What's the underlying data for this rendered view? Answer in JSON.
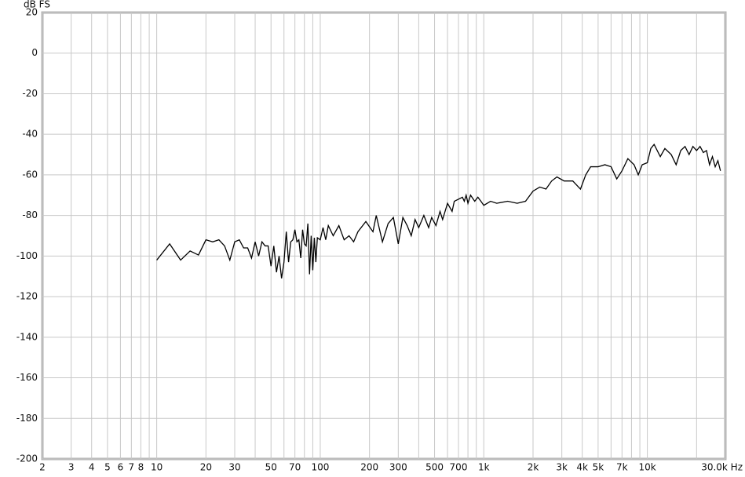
{
  "chart_data": {
    "type": "line",
    "y_label": "dB FS",
    "xscale": "log",
    "grid": true,
    "color": "#000000",
    "xlim": [
      2,
      30000
    ],
    "ylim": [
      -200,
      20
    ],
    "yticks": [
      -200,
      -180,
      -160,
      -140,
      -120,
      -100,
      -80,
      -60,
      -40,
      -20,
      0,
      20
    ],
    "xticks": [
      2,
      3,
      4,
      5,
      6,
      7,
      8,
      10,
      20,
      30,
      50,
      70,
      100,
      200,
      300,
      500,
      700,
      {
        "value": 1000,
        "label": "1k"
      },
      {
        "value": 2000,
        "label": "2k"
      },
      {
        "value": 3000,
        "label": "3k"
      },
      {
        "value": 4000,
        "label": "4k"
      },
      {
        "value": 5000,
        "label": "5k"
      },
      {
        "value": 7000,
        "label": "7k"
      },
      {
        "value": 10000,
        "label": "10k"
      },
      {
        "value": 30000,
        "label": "30.0k Hz"
      }
    ],
    "xgrid_minor": [
      9,
      40,
      60,
      80,
      90,
      400,
      600,
      800,
      900,
      6000,
      8000,
      9000,
      20000
    ],
    "x": [
      10,
      12,
      14,
      16,
      18,
      20,
      22,
      24,
      26,
      28,
      30,
      32,
      34,
      36,
      38,
      40,
      42,
      44,
      46,
      48,
      50,
      52,
      54,
      56,
      58,
      60,
      62,
      64,
      66,
      68,
      70,
      72,
      74,
      76,
      78,
      80,
      82,
      84,
      86,
      88,
      90,
      92,
      94,
      96,
      100,
      104,
      108,
      112,
      120,
      130,
      140,
      150,
      160,
      170,
      190,
      210,
      220,
      240,
      260,
      280,
      300,
      320,
      340,
      360,
      380,
      400,
      430,
      460,
      480,
      510,
      540,
      560,
      600,
      640,
      660,
      700,
      740,
      760,
      780,
      800,
      830,
      880,
      920,
      960,
      1000,
      1100,
      1200,
      1400,
      1600,
      1800,
      2000,
      2200,
      2400,
      2600,
      2800,
      3100,
      3500,
      3900,
      4200,
      4500,
      5000,
      5500,
      6000,
      6500,
      7000,
      7600,
      8300,
      8800,
      9300,
      10000,
      10500,
      11000,
      12000,
      12800,
      14000,
      15000,
      16000,
      17000,
      18000,
      19000,
      20000,
      21000,
      22000,
      23000,
      24000,
      25000,
      26000,
      27000,
      28000
    ],
    "values": [
      -102,
      -94,
      -102,
      -97.5,
      -99.5,
      -92,
      -93,
      -92,
      -95,
      -102,
      -93,
      -92,
      -96,
      -96,
      -101,
      -93,
      -100,
      -93,
      -95,
      -95,
      -105,
      -95,
      -108,
      -100,
      -111,
      -103,
      -88,
      -103,
      -93,
      -92,
      -87,
      -93,
      -92,
      -101,
      -87,
      -94,
      -95,
      -84,
      -109,
      -90,
      -107,
      -91,
      -103,
      -91,
      -92,
      -86,
      -92,
      -85,
      -90,
      -85,
      -92,
      -90,
      -93,
      -88,
      -83,
      -88,
      -80,
      -93,
      -84,
      -81,
      -94,
      -81,
      -85,
      -90,
      -82,
      -86,
      -80,
      -86,
      -81,
      -85,
      -78,
      -82,
      -74,
      -78,
      -73,
      -72,
      -71,
      -73,
      -70,
      -74,
      -70,
      -73,
      -71,
      -73,
      -75,
      -73,
      -74,
      -73,
      -74,
      -73,
      -68,
      -66,
      -67,
      -63,
      -61,
      -63,
      -63,
      -67,
      -60,
      -56,
      -56,
      -55,
      -56,
      -62,
      -58,
      -52,
      -55,
      -60,
      -55,
      -54,
      -47,
      -45,
      -51,
      -47,
      -50,
      -55,
      -48,
      -46,
      -50,
      -46,
      -48,
      -46,
      -49,
      -48,
      -55,
      -51,
      -56,
      -53,
      -58
    ]
  }
}
